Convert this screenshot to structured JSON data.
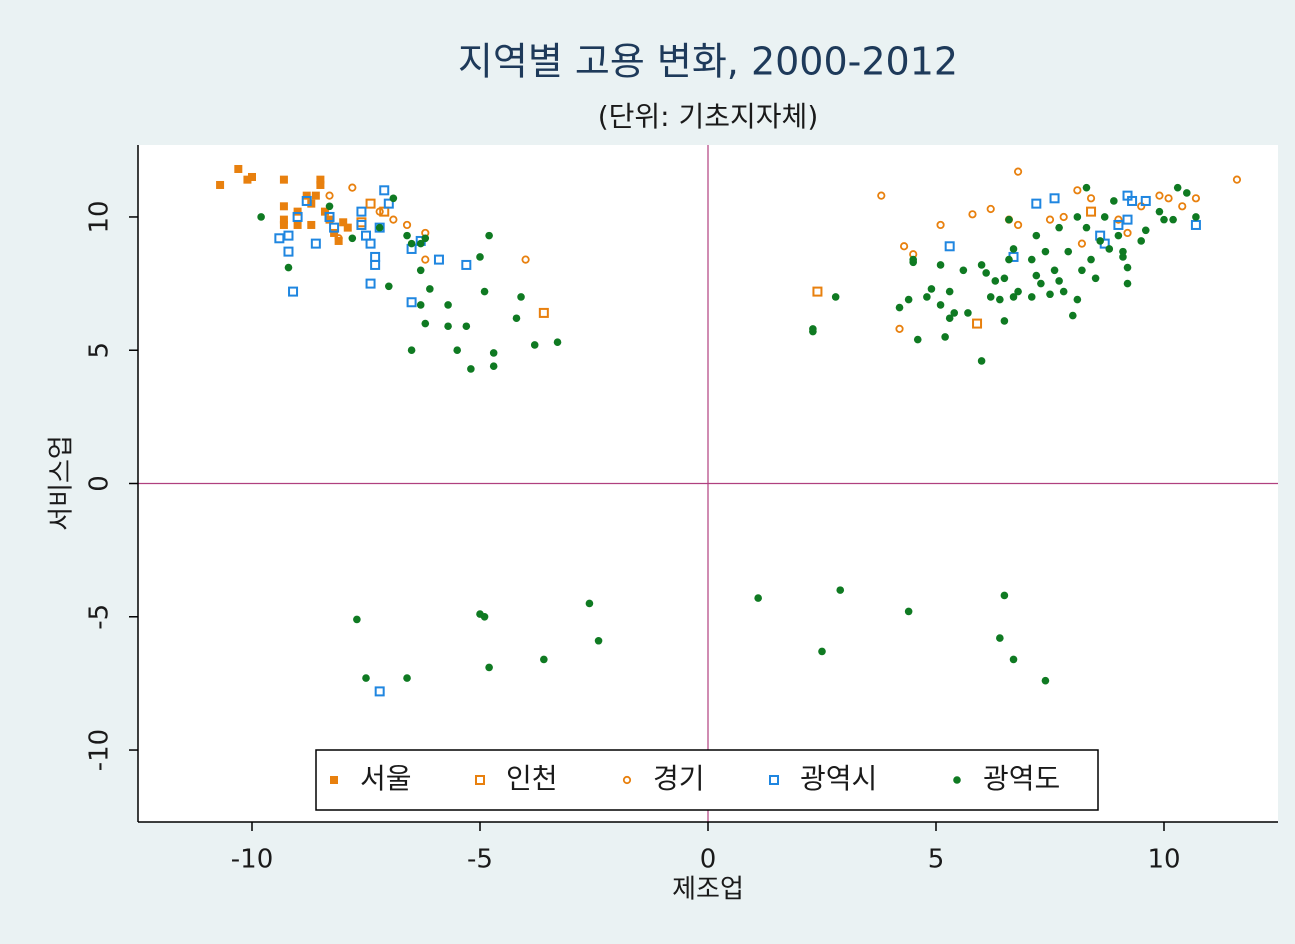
{
  "chart_data": {
    "type": "scatter",
    "title": "지역별 고용 변화, 2000-2012",
    "subtitle": "(단위: 기초지자체)",
    "x_label": "제조업",
    "y_label": "서비스업",
    "xlim": [
      -12.5,
      12.5
    ],
    "ylim": [
      -12.7,
      12.7
    ],
    "xticks": [
      -10,
      -5,
      0,
      5,
      10
    ],
    "yticks": [
      -10,
      -5,
      0,
      5,
      10
    ],
    "xline": 0,
    "yline": 0,
    "reference_line_color": "#b0407f",
    "legend": "bottom",
    "series": [
      {
        "name": "서울",
        "color": "#e8800e",
        "marker": "square-filled",
        "x": [
          -10.7,
          -10.3,
          -10.1,
          -10.0,
          -9.3,
          -9.3,
          -9.3,
          -9.3,
          -9.0,
          -8.8,
          -8.7,
          -8.5,
          -8.5,
          -8.6,
          -8.4,
          -8.3,
          -8.2,
          -8.1,
          -8.7,
          -8.0,
          -7.9,
          -9.0
        ],
        "y": [
          11.2,
          11.8,
          11.4,
          11.5,
          11.4,
          10.4,
          9.9,
          9.7,
          10.2,
          10.8,
          10.5,
          11.4,
          11.2,
          10.8,
          10.2,
          9.9,
          9.4,
          9.1,
          9.7,
          9.8,
          9.6,
          9.7
        ]
      },
      {
        "name": "인천",
        "color": "#e8800e",
        "marker": "square-hollow",
        "x": [
          2.4,
          5.9,
          -3.6,
          -7.4,
          -7.1,
          -7.6,
          8.4
        ],
        "y": [
          7.2,
          6.0,
          6.4,
          10.5,
          10.2,
          9.8,
          10.2
        ]
      },
      {
        "name": "경기",
        "color": "#e8800e",
        "marker": "circle-hollow",
        "x": [
          -7.8,
          -8.3,
          -6.9,
          -6.6,
          -6.2,
          -6.2,
          -4.0,
          -7.2,
          -8.1,
          3.8,
          4.3,
          4.5,
          4.2,
          5.1,
          5.8,
          6.2,
          6.6,
          6.8,
          6.8,
          7.5,
          7.8,
          8.1,
          8.4,
          8.2,
          9.0,
          9.5,
          9.9,
          10.1,
          10.4,
          10.7,
          11.6,
          9.2
        ],
        "y": [
          11.1,
          10.8,
          9.9,
          9.7,
          9.4,
          8.4,
          8.4,
          10.2,
          9.2,
          10.8,
          8.9,
          8.6,
          5.8,
          9.7,
          10.1,
          10.3,
          9.9,
          9.7,
          11.7,
          9.9,
          10.0,
          11.0,
          10.7,
          9.0,
          9.9,
          10.4,
          10.8,
          10.7,
          10.4,
          10.7,
          11.4,
          9.4
        ]
      },
      {
        "name": "광역시",
        "color": "#1f86e0",
        "marker": "square-hollow",
        "x": [
          -9.4,
          -9.2,
          -9.2,
          -9.1,
          -9.0,
          -8.8,
          -8.6,
          -8.3,
          -8.2,
          -7.6,
          -7.6,
          -7.5,
          -7.4,
          -7.3,
          -7.3,
          -7.4,
          -7.2,
          -7.1,
          -7.0,
          -6.5,
          -6.3,
          -5.9,
          -5.3,
          -6.5,
          -7.2,
          5.3,
          6.7,
          7.2,
          7.6,
          8.6,
          8.7,
          9.0,
          9.2,
          9.2,
          9.3,
          9.6,
          10.7
        ],
        "y": [
          9.2,
          9.3,
          8.7,
          7.2,
          10.0,
          10.6,
          9.0,
          10.0,
          9.6,
          10.2,
          9.7,
          9.3,
          9.0,
          8.5,
          8.2,
          7.5,
          9.6,
          11.0,
          10.5,
          8.8,
          9.1,
          8.4,
          8.2,
          6.8,
          -7.8,
          8.9,
          8.5,
          10.5,
          10.7,
          9.3,
          9.0,
          9.7,
          9.9,
          10.8,
          10.6,
          10.6,
          9.7
        ]
      },
      {
        "name": "광역도",
        "color": "#0f7a22",
        "marker": "circle-filled",
        "x": [
          -9.8,
          -9.2,
          -8.3,
          -7.8,
          -7.2,
          -7.0,
          -6.9,
          -6.6,
          -6.5,
          -6.3,
          -6.3,
          -6.2,
          -6.1,
          -6.2,
          -6.5,
          -6.3,
          -5.7,
          -5.7,
          -5.5,
          -5.3,
          -5.2,
          -5.0,
          -4.9,
          -4.8,
          -4.7,
          -4.7,
          -4.2,
          -4.1,
          -3.8,
          -3.3,
          -7.7,
          -7.5,
          -6.6,
          -5.0,
          -4.9,
          -4.8,
          -3.6,
          -2.6,
          -2.4,
          1.1,
          2.5,
          2.9,
          4.4,
          6.4,
          6.5,
          6.7,
          7.4,
          2.3,
          2.3,
          2.8,
          4.2,
          4.4,
          4.5,
          4.5,
          4.6,
          4.8,
          4.9,
          5.1,
          5.1,
          5.2,
          5.3,
          5.3,
          5.4,
          5.6,
          5.7,
          6.0,
          6.0,
          6.1,
          6.2,
          6.3,
          6.4,
          6.5,
          6.5,
          6.6,
          6.6,
          6.7,
          6.7,
          6.8,
          7.1,
          7.1,
          7.2,
          7.2,
          7.3,
          7.4,
          7.5,
          7.6,
          7.7,
          7.7,
          7.8,
          7.9,
          8.0,
          8.1,
          8.1,
          8.2,
          8.3,
          8.3,
          8.4,
          8.5,
          8.6,
          8.7,
          8.8,
          8.9,
          9.0,
          9.1,
          9.1,
          9.2,
          9.2,
          9.5,
          9.6,
          9.9,
          10.0,
          10.2,
          10.3,
          10.5,
          10.7
        ],
        "y": [
          10.0,
          8.1,
          10.4,
          9.2,
          9.6,
          7.4,
          10.7,
          9.3,
          9.0,
          9.0,
          8.0,
          9.2,
          7.3,
          6.0,
          5.0,
          6.7,
          5.9,
          6.7,
          5.0,
          5.9,
          4.3,
          8.5,
          7.2,
          9.3,
          4.9,
          4.4,
          6.2,
          7.0,
          5.2,
          5.3,
          -5.1,
          -7.3,
          -7.3,
          -4.9,
          -5.0,
          -6.9,
          -6.6,
          -4.5,
          -5.9,
          -4.3,
          -6.3,
          -4.0,
          -4.8,
          -5.8,
          -4.2,
          -6.6,
          -7.4,
          5.8,
          5.7,
          7.0,
          6.6,
          6.9,
          8.4,
          8.3,
          5.4,
          7.0,
          7.3,
          6.7,
          8.2,
          5.5,
          7.2,
          6.2,
          6.4,
          8.0,
          6.4,
          8.2,
          4.6,
          7.9,
          7.0,
          7.6,
          6.9,
          7.7,
          6.1,
          9.9,
          8.4,
          7.0,
          8.8,
          7.2,
          7.0,
          8.4,
          9.3,
          7.8,
          7.5,
          8.7,
          7.1,
          8.0,
          9.6,
          7.6,
          7.2,
          8.7,
          6.3,
          6.9,
          10.0,
          8.0,
          11.1,
          9.6,
          8.4,
          7.7,
          9.1,
          10.0,
          8.8,
          10.6,
          9.3,
          8.7,
          8.5,
          8.1,
          7.5,
          9.1,
          9.5,
          10.2,
          9.9,
          9.9,
          11.1,
          10.9,
          10.0
        ]
      }
    ]
  }
}
